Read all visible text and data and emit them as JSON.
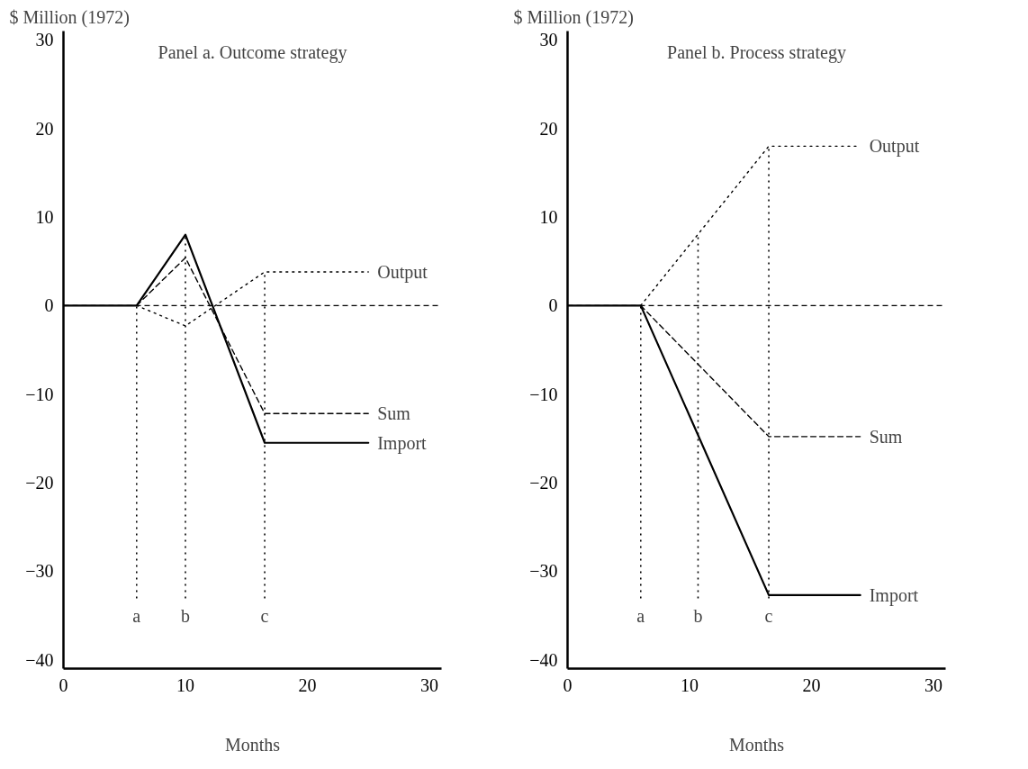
{
  "chart_data": [
    {
      "type": "line",
      "title": "Panel a. Outcome strategy",
      "ylabel": "$ Million (1972)",
      "xlabel": "Months",
      "xlim": [
        0,
        31
      ],
      "ylim": [
        -41,
        31
      ],
      "xticks": [
        0,
        10,
        20,
        30
      ],
      "yticks": [
        -40,
        -30,
        -20,
        -10,
        0,
        10,
        20,
        30
      ],
      "grid": false,
      "series": [
        {
          "name": "Output",
          "color": "#000000",
          "line_style": "dotted",
          "x": [
            6,
            10,
            16.5,
            25
          ],
          "values": [
            0,
            -2.3,
            3.8,
            3.8
          ]
        },
        {
          "name": "Sum",
          "color": "#000000",
          "line_style": "dashed",
          "x": [
            6,
            10,
            16.5,
            25
          ],
          "values": [
            0,
            5.4,
            -12.2,
            -12.2
          ]
        },
        {
          "name": "Import",
          "color": "#000000",
          "line_style": "solid",
          "x": [
            0,
            6,
            10,
            16.5,
            25
          ],
          "values": [
            0,
            0,
            8,
            -15.5,
            -15.5
          ]
        }
      ],
      "ref_lines": [
        {
          "axis": "y",
          "value": 0,
          "label": null,
          "line_style": "dashed",
          "color": "#000000"
        },
        {
          "axis": "x",
          "value": 6,
          "label": "a",
          "line_style": "dotted",
          "color": "#000000"
        },
        {
          "axis": "x",
          "value": 10,
          "label": "b",
          "line_style": "dotted",
          "color": "#000000"
        },
        {
          "axis": "x",
          "value": 16.5,
          "label": "c",
          "line_style": "dotted",
          "color": "#000000"
        }
      ]
    },
    {
      "type": "line",
      "title": "Panel b. Process strategy",
      "ylabel": "$ Million (1972)",
      "xlabel": "Months",
      "xlim": [
        0,
        31
      ],
      "ylim": [
        -41,
        31
      ],
      "xticks": [
        0,
        10,
        20,
        30
      ],
      "yticks": [
        -40,
        -30,
        -20,
        -10,
        0,
        10,
        20,
        30
      ],
      "grid": false,
      "series": [
        {
          "name": "Output",
          "color": "#000000",
          "line_style": "dotted",
          "x": [
            6,
            16.5,
            24
          ],
          "values": [
            0,
            18,
            18
          ]
        },
        {
          "name": "Sum",
          "color": "#000000",
          "line_style": "dashed",
          "x": [
            6,
            16.5,
            24
          ],
          "values": [
            0,
            -14.8,
            -14.8
          ]
        },
        {
          "name": "Import",
          "color": "#000000",
          "line_style": "solid",
          "x": [
            0,
            6,
            16.5,
            24
          ],
          "values": [
            0,
            0,
            -32.7,
            -32.7
          ]
        }
      ],
      "ref_lines": [
        {
          "axis": "y",
          "value": 0,
          "label": null,
          "line_style": "dashed",
          "color": "#000000"
        },
        {
          "axis": "x",
          "value": 6,
          "label": "a",
          "line_style": "dotted",
          "color": "#000000"
        },
        {
          "axis": "x",
          "value": 10.7,
          "label": "b",
          "line_style": "dotted",
          "color": "#000000"
        },
        {
          "axis": "x",
          "value": 16.5,
          "label": "c",
          "line_style": "dotted",
          "color": "#000000"
        }
      ]
    }
  ]
}
